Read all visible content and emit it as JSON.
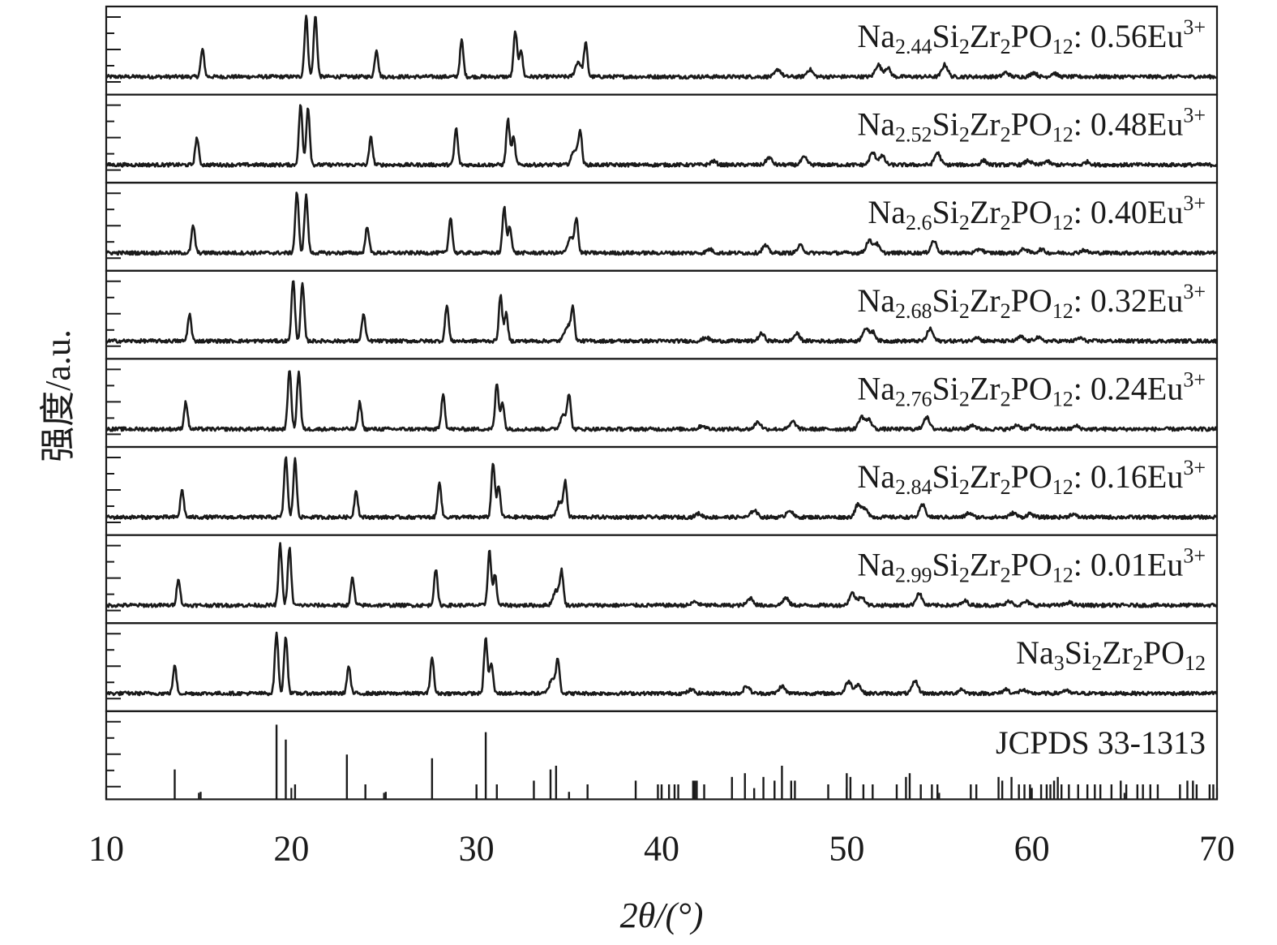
{
  "chart_data": {
    "type": "line",
    "xlabel": "2θ/(°)",
    "ylabel": "强度/a.u.",
    "xlim": [
      10,
      70
    ],
    "xticks": [
      10,
      20,
      30,
      40,
      50,
      60,
      70
    ],
    "grid": false,
    "line_color": "#1a1a1a",
    "panels": [
      {
        "label": "Na2.44Si2Zr2PO12: 0.56Eu3+",
        "label_parts": [
          [
            "Na",
            ""
          ],
          [
            "2.44",
            "sub"
          ],
          [
            "Si",
            ""
          ],
          [
            "2",
            "sub"
          ],
          [
            "Zr",
            ""
          ],
          [
            "2",
            "sub"
          ],
          [
            "PO",
            ""
          ],
          [
            "12",
            "sub"
          ],
          [
            ": 0.56Eu",
            ""
          ],
          [
            "3+",
            "sup"
          ]
        ],
        "peaks": [
          [
            15.2,
            0.45
          ],
          [
            20.8,
            1.0
          ],
          [
            21.3,
            1.0
          ],
          [
            24.6,
            0.45
          ],
          [
            29.2,
            0.6
          ],
          [
            32.1,
            0.75
          ],
          [
            32.4,
            0.45
          ],
          [
            35.5,
            0.25
          ],
          [
            35.9,
            0.55
          ],
          [
            46.3,
            0.12
          ],
          [
            48.0,
            0.12
          ],
          [
            51.7,
            0.2
          ],
          [
            52.2,
            0.15
          ],
          [
            55.3,
            0.2
          ],
          [
            58.6,
            0.07
          ],
          [
            60.1,
            0.07
          ],
          [
            61.2,
            0.06
          ]
        ]
      },
      {
        "label": "Na2.52Si2Zr2PO12: 0.48Eu3+",
        "label_parts": [
          [
            "Na",
            ""
          ],
          [
            "2.52",
            "sub"
          ],
          [
            "Si",
            ""
          ],
          [
            "2",
            "sub"
          ],
          [
            "Zr",
            ""
          ],
          [
            "2",
            "sub"
          ],
          [
            "PO",
            ""
          ],
          [
            "12",
            "sub"
          ],
          [
            ": 0.48Eu",
            ""
          ],
          [
            "3+",
            "sup"
          ]
        ],
        "peaks": [
          [
            14.9,
            0.45
          ],
          [
            20.5,
            1.0
          ],
          [
            20.9,
            0.95
          ],
          [
            24.3,
            0.45
          ],
          [
            28.9,
            0.6
          ],
          [
            31.7,
            0.75
          ],
          [
            32.0,
            0.45
          ],
          [
            35.3,
            0.25
          ],
          [
            35.6,
            0.55
          ],
          [
            42.8,
            0.06
          ],
          [
            45.8,
            0.12
          ],
          [
            47.7,
            0.12
          ],
          [
            51.4,
            0.2
          ],
          [
            51.9,
            0.15
          ],
          [
            54.9,
            0.2
          ],
          [
            57.4,
            0.07
          ],
          [
            59.8,
            0.07
          ],
          [
            60.8,
            0.06
          ],
          [
            63.0,
            0.05
          ]
        ]
      },
      {
        "label": "Na2.6Si2Zr2PO12: 0.40Eu3+",
        "label_parts": [
          [
            "Na",
            ""
          ],
          [
            "2.6",
            "sub"
          ],
          [
            "Si",
            ""
          ],
          [
            "2",
            "sub"
          ],
          [
            "Zr",
            ""
          ],
          [
            "2",
            "sub"
          ],
          [
            "PO",
            ""
          ],
          [
            "12",
            "sub"
          ],
          [
            ": 0.40Eu",
            ""
          ],
          [
            "3+",
            "sup"
          ]
        ],
        "peaks": [
          [
            14.7,
            0.45
          ],
          [
            20.3,
            1.0
          ],
          [
            20.8,
            0.95
          ],
          [
            24.1,
            0.45
          ],
          [
            28.6,
            0.6
          ],
          [
            31.5,
            0.75
          ],
          [
            31.8,
            0.45
          ],
          [
            35.1,
            0.25
          ],
          [
            35.4,
            0.55
          ],
          [
            42.6,
            0.06
          ],
          [
            45.6,
            0.12
          ],
          [
            47.5,
            0.12
          ],
          [
            51.2,
            0.2
          ],
          [
            51.6,
            0.15
          ],
          [
            54.7,
            0.2
          ],
          [
            57.2,
            0.07
          ],
          [
            59.6,
            0.07
          ],
          [
            60.5,
            0.06
          ],
          [
            62.8,
            0.05
          ]
        ]
      },
      {
        "label": "Na2.68Si2Zr2PO12: 0.32Eu3+",
        "label_parts": [
          [
            "Na",
            ""
          ],
          [
            "2.68",
            "sub"
          ],
          [
            "Si",
            ""
          ],
          [
            "2",
            "sub"
          ],
          [
            "Zr",
            ""
          ],
          [
            "2",
            "sub"
          ],
          [
            "PO",
            ""
          ],
          [
            "12",
            "sub"
          ],
          [
            ": 0.32Eu",
            ""
          ],
          [
            "3+",
            "sup"
          ]
        ],
        "peaks": [
          [
            14.5,
            0.45
          ],
          [
            20.1,
            1.0
          ],
          [
            20.6,
            0.95
          ],
          [
            23.9,
            0.45
          ],
          [
            28.4,
            0.6
          ],
          [
            31.3,
            0.75
          ],
          [
            31.6,
            0.45
          ],
          [
            34.9,
            0.25
          ],
          [
            35.2,
            0.55
          ],
          [
            42.4,
            0.06
          ],
          [
            45.4,
            0.12
          ],
          [
            47.3,
            0.12
          ],
          [
            51.0,
            0.2
          ],
          [
            51.4,
            0.15
          ],
          [
            54.5,
            0.2
          ],
          [
            57.0,
            0.07
          ],
          [
            59.4,
            0.07
          ],
          [
            60.3,
            0.06
          ],
          [
            62.6,
            0.05
          ]
        ]
      },
      {
        "label": "Na2.76Si2Zr2PO12: 0.24Eu3+",
        "label_parts": [
          [
            "Na",
            ""
          ],
          [
            "2.76",
            "sub"
          ],
          [
            "Si",
            ""
          ],
          [
            "2",
            "sub"
          ],
          [
            "Zr",
            ""
          ],
          [
            "2",
            "sub"
          ],
          [
            "PO",
            ""
          ],
          [
            "12",
            "sub"
          ],
          [
            ": 0.24Eu",
            ""
          ],
          [
            "3+",
            "sup"
          ]
        ],
        "peaks": [
          [
            14.3,
            0.45
          ],
          [
            19.9,
            1.0
          ],
          [
            20.4,
            0.95
          ],
          [
            23.7,
            0.45
          ],
          [
            28.2,
            0.6
          ],
          [
            31.1,
            0.75
          ],
          [
            31.4,
            0.45
          ],
          [
            34.7,
            0.25
          ],
          [
            35.0,
            0.55
          ],
          [
            42.2,
            0.06
          ],
          [
            45.2,
            0.12
          ],
          [
            47.1,
            0.12
          ],
          [
            50.8,
            0.2
          ],
          [
            51.2,
            0.15
          ],
          [
            54.3,
            0.2
          ],
          [
            56.8,
            0.07
          ],
          [
            59.2,
            0.07
          ],
          [
            60.1,
            0.06
          ],
          [
            62.4,
            0.05
          ]
        ]
      },
      {
        "label": "Na2.84Si2Zr2PO12: 0.16Eu3+",
        "label_parts": [
          [
            "Na",
            ""
          ],
          [
            "2.84",
            "sub"
          ],
          [
            "Si",
            ""
          ],
          [
            "2",
            "sub"
          ],
          [
            "Zr",
            ""
          ],
          [
            "2",
            "sub"
          ],
          [
            "PO",
            ""
          ],
          [
            "12",
            "sub"
          ],
          [
            ": 0.16Eu",
            ""
          ],
          [
            "3+",
            "sup"
          ]
        ],
        "peaks": [
          [
            14.1,
            0.45
          ],
          [
            19.7,
            1.0
          ],
          [
            20.2,
            0.95
          ],
          [
            23.5,
            0.45
          ],
          [
            28.0,
            0.6
          ],
          [
            30.9,
            0.9
          ],
          [
            31.2,
            0.5
          ],
          [
            34.5,
            0.25
          ],
          [
            34.8,
            0.55
          ],
          [
            42.0,
            0.06
          ],
          [
            45.0,
            0.12
          ],
          [
            46.9,
            0.12
          ],
          [
            50.6,
            0.2
          ],
          [
            51.0,
            0.15
          ],
          [
            54.1,
            0.2
          ],
          [
            56.6,
            0.07
          ],
          [
            59.0,
            0.07
          ],
          [
            59.9,
            0.06
          ],
          [
            62.2,
            0.05
          ]
        ]
      },
      {
        "label": "Na2.99Si2Zr2PO12: 0.01Eu3+",
        "label_parts": [
          [
            "Na",
            ""
          ],
          [
            "2.99",
            "sub"
          ],
          [
            "Si",
            ""
          ],
          [
            "2",
            "sub"
          ],
          [
            "Zr",
            ""
          ],
          [
            "2",
            "sub"
          ],
          [
            "PO",
            ""
          ],
          [
            "12",
            "sub"
          ],
          [
            ": 0.01Eu",
            ""
          ],
          [
            "3+",
            "sup"
          ]
        ],
        "peaks": [
          [
            13.9,
            0.45
          ],
          [
            19.4,
            1.0
          ],
          [
            19.9,
            0.95
          ],
          [
            23.3,
            0.45
          ],
          [
            27.8,
            0.6
          ],
          [
            30.7,
            0.9
          ],
          [
            31.0,
            0.5
          ],
          [
            34.3,
            0.25
          ],
          [
            34.6,
            0.55
          ],
          [
            41.8,
            0.06
          ],
          [
            44.8,
            0.12
          ],
          [
            46.7,
            0.12
          ],
          [
            50.3,
            0.2
          ],
          [
            50.8,
            0.15
          ],
          [
            53.9,
            0.2
          ],
          [
            56.4,
            0.07
          ],
          [
            58.8,
            0.07
          ],
          [
            59.7,
            0.06
          ],
          [
            62.0,
            0.05
          ]
        ]
      },
      {
        "label": "Na3Si2Zr2PO12",
        "label_parts": [
          [
            "Na",
            ""
          ],
          [
            "3",
            "sub"
          ],
          [
            "Si",
            ""
          ],
          [
            "2",
            "sub"
          ],
          [
            "Zr",
            ""
          ],
          [
            "2",
            "sub"
          ],
          [
            "PO",
            ""
          ],
          [
            "12",
            "sub"
          ]
        ],
        "peaks": [
          [
            13.7,
            0.45
          ],
          [
            19.2,
            1.0
          ],
          [
            19.7,
            0.95
          ],
          [
            23.1,
            0.45
          ],
          [
            27.6,
            0.6
          ],
          [
            30.5,
            0.9
          ],
          [
            30.8,
            0.5
          ],
          [
            34.1,
            0.25
          ],
          [
            34.4,
            0.55
          ],
          [
            41.6,
            0.06
          ],
          [
            44.6,
            0.12
          ],
          [
            46.5,
            0.12
          ],
          [
            50.1,
            0.2
          ],
          [
            50.6,
            0.15
          ],
          [
            53.7,
            0.2
          ],
          [
            56.2,
            0.07
          ],
          [
            58.6,
            0.07
          ],
          [
            59.5,
            0.06
          ],
          [
            61.8,
            0.05
          ]
        ]
      }
    ],
    "reference": {
      "label": "JCPDS 33-1313",
      "lines": [
        [
          13.7,
          0.4
        ],
        [
          15.1,
          0.1
        ],
        [
          19.2,
          1.0
        ],
        [
          19.7,
          0.8
        ],
        [
          20.2,
          0.2
        ],
        [
          23.0,
          0.6
        ],
        [
          24.0,
          0.2
        ],
        [
          25.1,
          0.1
        ],
        [
          27.6,
          0.55
        ],
        [
          30.0,
          0.2
        ],
        [
          30.5,
          0.9
        ],
        [
          31.1,
          0.2
        ],
        [
          33.1,
          0.25
        ],
        [
          34.0,
          0.4
        ],
        [
          34.3,
          0.45
        ],
        [
          35.0,
          0.1
        ],
        [
          36.0,
          0.2
        ],
        [
          38.6,
          0.25
        ],
        [
          39.8,
          0.2
        ],
        [
          40.0,
          0.2
        ],
        [
          40.4,
          0.2
        ],
        [
          40.7,
          0.2
        ],
        [
          40.9,
          0.2
        ],
        [
          41.7,
          0.25
        ],
        [
          41.8,
          0.25
        ],
        [
          41.9,
          0.25
        ],
        [
          42.3,
          0.2
        ],
        [
          43.8,
          0.3
        ],
        [
          44.5,
          0.35
        ],
        [
          45.0,
          0.15
        ],
        [
          45.5,
          0.3
        ],
        [
          46.1,
          0.25
        ],
        [
          46.5,
          0.45
        ],
        [
          47.0,
          0.25
        ],
        [
          47.2,
          0.25
        ],
        [
          49.0,
          0.2
        ],
        [
          50.0,
          0.35
        ],
        [
          50.2,
          0.3
        ],
        [
          50.9,
          0.2
        ],
        [
          51.4,
          0.2
        ],
        [
          52.7,
          0.2
        ],
        [
          53.2,
          0.3
        ],
        [
          53.4,
          0.35
        ],
        [
          54.0,
          0.2
        ],
        [
          54.6,
          0.2
        ],
        [
          54.9,
          0.2
        ],
        [
          56.7,
          0.2
        ],
        [
          57.0,
          0.2
        ],
        [
          58.2,
          0.3
        ],
        [
          58.4,
          0.25
        ],
        [
          58.9,
          0.3
        ],
        [
          59.3,
          0.2
        ],
        [
          59.6,
          0.2
        ],
        [
          59.9,
          0.2
        ],
        [
          60.5,
          0.2
        ],
        [
          60.8,
          0.2
        ],
        [
          61.0,
          0.2
        ],
        [
          61.2,
          0.25
        ],
        [
          61.4,
          0.3
        ],
        [
          61.6,
          0.2
        ],
        [
          62.0,
          0.2
        ],
        [
          62.5,
          0.2
        ],
        [
          63.0,
          0.2
        ],
        [
          63.4,
          0.2
        ],
        [
          63.7,
          0.2
        ],
        [
          64.3,
          0.2
        ],
        [
          64.8,
          0.25
        ],
        [
          65.1,
          0.2
        ],
        [
          65.7,
          0.2
        ],
        [
          66.0,
          0.2
        ],
        [
          66.4,
          0.2
        ],
        [
          66.8,
          0.2
        ],
        [
          68.0,
          0.2
        ],
        [
          68.4,
          0.25
        ],
        [
          68.7,
          0.25
        ],
        [
          68.9,
          0.2
        ],
        [
          69.6,
          0.2
        ],
        [
          69.8,
          0.2
        ]
      ]
    }
  }
}
